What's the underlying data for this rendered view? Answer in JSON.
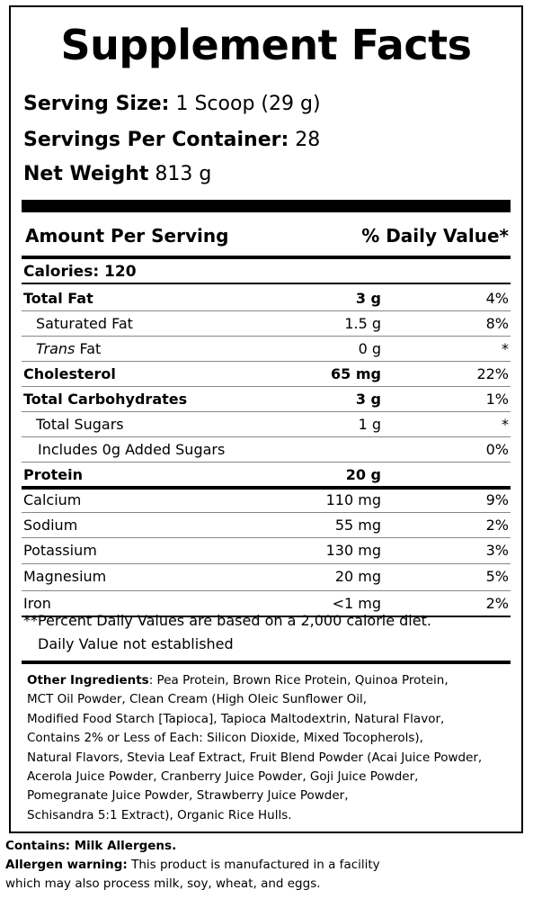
{
  "title": "Supplement Facts",
  "serving": {
    "size_label": "Serving Size:",
    "size_value": " 1 Scoop (29 g)",
    "per_container_label": "Servings Per Container:",
    "per_container_value": " 28",
    "net_weight_label": "Net Weight",
    "net_weight_value": " 813 g"
  },
  "header": {
    "amount_label": "Amount Per Serving",
    "dv_label": "% Daily Value*"
  },
  "calories": "Calories: 120",
  "nutrients": [
    {
      "name": "Total Fat",
      "amount": "3  g",
      "dv": "4%"
    },
    {
      "name": "Saturated Fat",
      "amount": "1.5  g",
      "dv": "8%"
    },
    {
      "name_italic": "Trans",
      "name": " Fat",
      "amount": "0 g",
      "dv": "*"
    },
    {
      "name": "Cholesterol",
      "amount": "65 mg",
      "dv": "22%"
    },
    {
      "name": "Total Carbohydrates",
      "amount": "3  g",
      "dv": "1%"
    },
    {
      "name": "Total Sugars",
      "amount": "1  g",
      "dv": "*"
    },
    {
      "name": "Includes 0g Added Sugars",
      "amount": "",
      "dv": "0%"
    },
    {
      "name": "Protein",
      "amount": "20 g",
      "dv": ""
    },
    {
      "name": "Calcium",
      "amount": "110 mg",
      "dv": "9%"
    },
    {
      "name": "Sodium",
      "amount": "55 mg",
      "dv": "2%"
    },
    {
      "name": "Potassium",
      "amount": "130 mg",
      "dv": "3%"
    },
    {
      "name": "Magnesium",
      "amount": "20 mg",
      "dv": "5%"
    },
    {
      "name": "Iron",
      "amount": "<1 mg",
      "dv": "2%"
    }
  ],
  "footnotes": {
    "line1": "**Percent Daily Values are based on a 2,000 calorie diet.",
    "line2": "Daily Value not established"
  },
  "ingredients": {
    "label": "Other Ingredients",
    "lines": [
      ": Pea Protein, Brown Rice Protein, Quinoa Protein,",
      "MCT Oil Powder, Clean Cream (High Oleic Sunflower Oil,",
      "Modified Food Starch [Tapioca], Tapioca Maltodextrin, Natural Flavor,",
      "Contains 2% or Less of Each: Silicon Dioxide, Mixed Tocopherols),",
      "Natural Flavors, Stevia Leaf Extract, Fruit Blend Powder (Acai Juice Powder,",
      "Acerola Juice Powder, Cranberry Juice Powder, Goji Juice Powder,",
      "Pomegranate Juice Powder, Strawberry Juice Powder,",
      "Schisandra 5:1 Extract), Organic Rice Hulls."
    ]
  },
  "allergens": {
    "contains": "Contains: Milk Allergens.",
    "warning_label": "Allergen warning:",
    "warning_text": " This product is manufactured in a facility",
    "warning_line2": "which may also process milk, soy, wheat, and eggs."
  }
}
